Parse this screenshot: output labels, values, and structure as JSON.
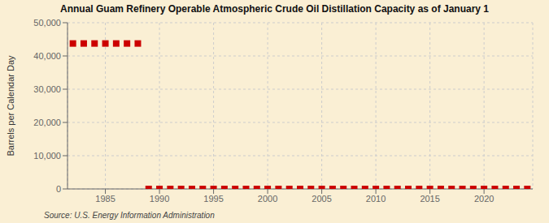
{
  "chart_data": {
    "type": "scatter",
    "title": "Annual Guam Refinery Operable Atmospheric Crude Oil Distillation Capacity as of January 1",
    "ylabel": "Barrels per Calendar Day",
    "source": "Source: U.S. Energy Information Administration",
    "color": "#cc0000",
    "marker": "square",
    "grid": true,
    "xlim": [
      1981.5,
      2024.5
    ],
    "ylim": [
      0,
      50000
    ],
    "xticks": [
      1985,
      1990,
      1995,
      2000,
      2005,
      2010,
      2015,
      2020
    ],
    "yticks": [
      0,
      {
        "value": 10000,
        "label": "10,000"
      },
      {
        "value": 20000,
        "label": "20,000"
      },
      {
        "value": 30000,
        "label": "30,000"
      },
      {
        "value": 40000,
        "label": "40,000"
      },
      {
        "value": 50000,
        "label": "50,000"
      }
    ],
    "x": [
      1982,
      1983,
      1984,
      1985,
      1986,
      1987,
      1988,
      1989,
      1990,
      1991,
      1992,
      1993,
      1994,
      1995,
      1996,
      1997,
      1998,
      1999,
      2000,
      2001,
      2002,
      2003,
      2004,
      2005,
      2006,
      2007,
      2008,
      2009,
      2010,
      2011,
      2012,
      2013,
      2014,
      2015,
      2016,
      2017,
      2018,
      2019,
      2020,
      2021,
      2022,
      2023,
      2024
    ],
    "values": [
      43750,
      43750,
      43750,
      43750,
      43750,
      43750,
      43750,
      0,
      0,
      0,
      0,
      0,
      0,
      0,
      0,
      0,
      0,
      0,
      0,
      0,
      0,
      0,
      0,
      0,
      0,
      0,
      0,
      0,
      0,
      0,
      0,
      0,
      0,
      0,
      0,
      0,
      0,
      0,
      0,
      0,
      0,
      0,
      0
    ]
  }
}
